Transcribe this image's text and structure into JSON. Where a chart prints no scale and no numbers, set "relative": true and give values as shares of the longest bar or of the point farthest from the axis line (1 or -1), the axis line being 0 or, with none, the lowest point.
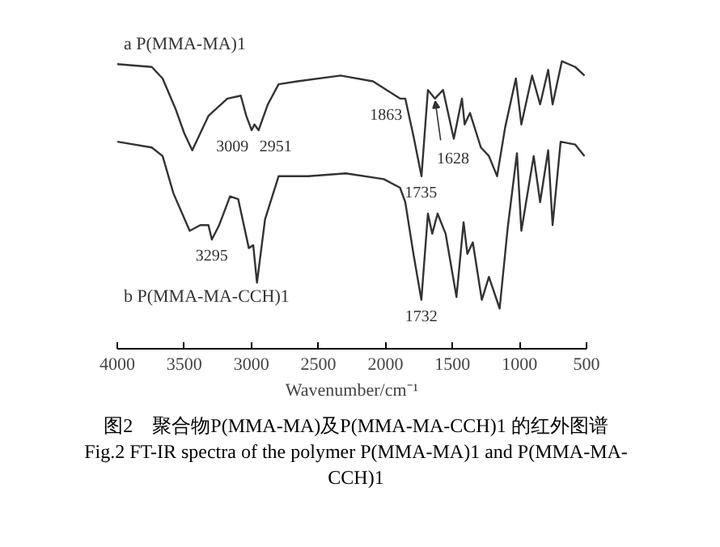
{
  "chart_data": {
    "type": "line",
    "relative": true,
    "xlabel": "Wavenumber/cm⁻¹",
    "xlim": [
      4000,
      500
    ],
    "xticks": [
      4000,
      3500,
      3000,
      2500,
      2000,
      1500,
      1000,
      500
    ],
    "tick_labels": "x",
    "grid": false,
    "line_style": "solid",
    "series": [
      {
        "name": "a P(MMA-MA)1",
        "color": "#333333",
        "x": [
          4000,
          3743,
          3662,
          3562,
          3501,
          3441,
          3320,
          3179,
          3079,
          3038,
          2998,
          2977,
          2946,
          2877,
          2797,
          2657,
          2334,
          2093,
          1891,
          1852,
          1791,
          1731,
          1683,
          1631,
          1570,
          1490,
          1429,
          1409,
          1369,
          1288,
          1228,
          1167,
          1107,
          1027,
          986,
          906,
          846,
          786,
          753,
          684,
          584,
          515
        ],
        "values": [
          0.99,
          0.98,
          0.94,
          0.83,
          0.75,
          0.69,
          0.81,
          0.87,
          0.88,
          0.81,
          0.76,
          0.78,
          0.76,
          0.85,
          0.92,
          0.93,
          0.95,
          0.93,
          0.87,
          0.87,
          0.74,
          0.6,
          0.9,
          0.87,
          0.9,
          0.73,
          0.87,
          0.78,
          0.82,
          0.7,
          0.67,
          0.6,
          0.77,
          0.94,
          0.78,
          0.95,
          0.85,
          0.97,
          0.85,
          1.0,
          0.98,
          0.95
        ]
      },
      {
        "name": "b P(MMA-MA-CCH)1",
        "color": "#333333",
        "x": [
          4000,
          3743,
          3662,
          3581,
          3460,
          3381,
          3320,
          3295,
          3240,
          3159,
          3098,
          3019,
          2986,
          2958,
          2898,
          2797,
          2576,
          2295,
          2012,
          1891,
          1852,
          1791,
          1732,
          1683,
          1651,
          1611,
          1551,
          1470,
          1417,
          1389,
          1348,
          1281,
          1228,
          1148,
          1088,
          1019,
          986,
          894,
          846,
          786,
          753,
          693,
          584,
          515
        ],
        "values": [
          0.72,
          0.7,
          0.67,
          0.54,
          0.41,
          0.43,
          0.43,
          0.38,
          0.43,
          0.53,
          0.52,
          0.35,
          0.36,
          0.23,
          0.45,
          0.6,
          0.6,
          0.61,
          0.59,
          0.56,
          0.51,
          0.33,
          0.17,
          0.47,
          0.4,
          0.47,
          0.4,
          0.18,
          0.44,
          0.33,
          0.37,
          0.17,
          0.25,
          0.14,
          0.42,
          0.68,
          0.41,
          0.67,
          0.51,
          0.69,
          0.43,
          0.72,
          0.71,
          0.67
        ]
      }
    ],
    "annotations": [
      {
        "text": "3009",
        "x": 3009,
        "y": 0.76
      },
      {
        "text": "2951",
        "x": 2951,
        "y": 0.76
      },
      {
        "text": "1863",
        "x": 1863,
        "y": 0.87
      },
      {
        "text": "1628",
        "x": 1628,
        "y": 0.87
      },
      {
        "text": "1735",
        "x": 1735,
        "y": 0.6
      },
      {
        "text": "3295",
        "x": 3295,
        "y": 0.38
      },
      {
        "text": "1732",
        "x": 1732,
        "y": 0.17
      },
      "图2　聚合物P(MMA-MA)及P(MMA-MA-CCH)1 的红外图谱",
      "Fig.2 FT-IR spectra of the polymer P(MMA-MA)1 and P(MMA-MA-CCH)1"
    ]
  }
}
